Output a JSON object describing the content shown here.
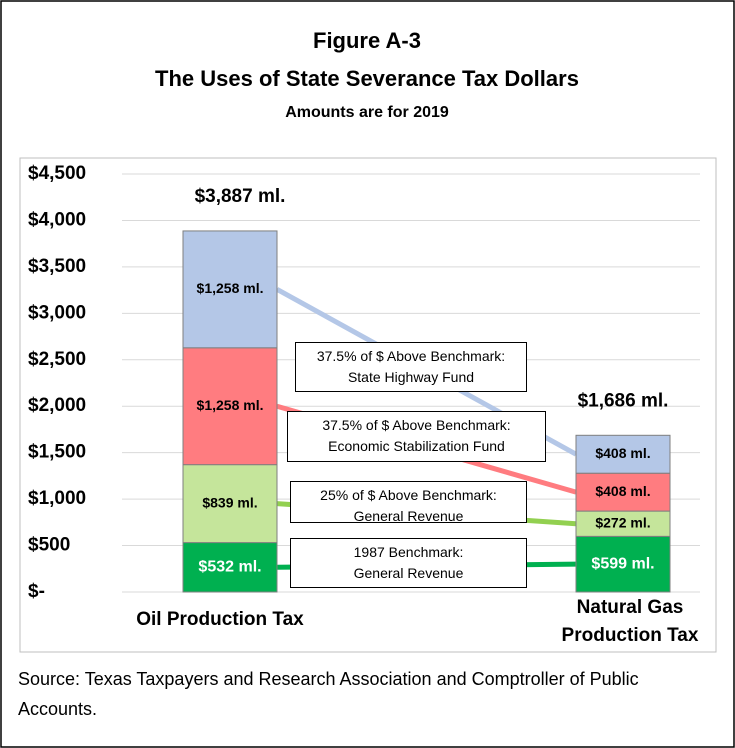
{
  "chart_data": {
    "type": "stacked_bar",
    "title": "Figure A-3",
    "subtitle": "The Uses of State Severance Tax Dollars",
    "note": "Amounts are for 2019",
    "source": "Source: Texas Taxpayers and Research Association and Comptroller of Public Accounts.",
    "categories": [
      "Oil Production Tax",
      "Natural Gas\nProduction Tax"
    ],
    "series": [
      {
        "name": "1987 Benchmark:\nGeneral Revenue",
        "color": "#00b050",
        "line_color": "#00b050",
        "label_color": "#ffffff",
        "values": [
          532,
          599
        ],
        "value_labels": [
          "$532 ml.",
          "$599 ml."
        ]
      },
      {
        "name": "25% of $ Above Benchmark:\nGeneral Revenue",
        "color": "#c5e59b",
        "line_color": "#92d050",
        "label_color": "#000000",
        "values": [
          839,
          272
        ],
        "value_labels": [
          "$839 ml.",
          "$272 ml."
        ]
      },
      {
        "name": "37.5% of $ Above Benchmark:\nEconomic Stabilization Fund",
        "color": "#ff7c80",
        "line_color": "#ff7c80",
        "label_color": "#000000",
        "values": [
          1258,
          408
        ],
        "value_labels": [
          "$1,258 ml.",
          "$408 ml."
        ]
      },
      {
        "name": "37.5% of $ Above Benchmark:\nState Highway Fund",
        "color": "#b4c7e7",
        "line_color": "#b4c7e7",
        "label_color": "#000000",
        "values": [
          1258,
          408
        ],
        "value_labels": [
          "$1,258 ml.",
          "$408 ml."
        ]
      }
    ],
    "totals": [
      3887,
      1686
    ],
    "total_labels": [
      "$3,887 ml.",
      "$1,686 ml."
    ],
    "ylim": [
      0,
      4500
    ],
    "yticks": [
      {
        "value": 0,
        "label": "$-"
      },
      {
        "value": 500,
        "label": "$500"
      },
      {
        "value": 1000,
        "label": "$1,000"
      },
      {
        "value": 1500,
        "label": "$1,500"
      },
      {
        "value": 2000,
        "label": "$2,000"
      },
      {
        "value": 2500,
        "label": "$2,500"
      },
      {
        "value": 3000,
        "label": "$3,000"
      },
      {
        "value": 3500,
        "label": "$3,500"
      },
      {
        "value": 4000,
        "label": "$4,000"
      },
      {
        "value": 4500,
        "label": "$4,500"
      }
    ],
    "grid": true
  }
}
